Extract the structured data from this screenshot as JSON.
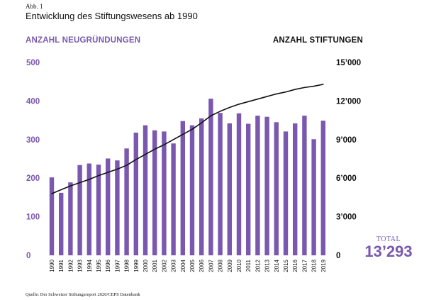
{
  "figure_label": "Abb. 1",
  "title": "Entwicklung des Stiftungswesens ab 1990",
  "left_axis_title": "ANZAHL NEUGRÜNDUNGEN",
  "right_axis_title": "ANZAHL STIFTUNGEN",
  "total": {
    "label": "TOTAL",
    "value": "13’293"
  },
  "source": "Quelle: Der Schweizer Stiftungsreport 2020/CEPS Datenbank",
  "colors": {
    "bars": "#7a58b0",
    "line": "#111111",
    "left_axis_text": "#7a58b0",
    "right_axis_text": "#111111"
  },
  "chart_data": {
    "type": "bar",
    "categories": [
      "1990",
      "1991",
      "1992",
      "1993",
      "1994",
      "1995",
      "1996",
      "1997",
      "1998",
      "1999",
      "2000",
      "2001",
      "2002",
      "2003",
      "2004",
      "2005",
      "2006",
      "2007",
      "2008",
      "2009",
      "2010",
      "2011",
      "2012",
      "2013",
      "2014",
      "2015",
      "2016",
      "2017",
      "2018",
      "2019"
    ],
    "series": [
      {
        "type": "bar",
        "axis": "left",
        "values": [
          202,
          162,
          189,
          234,
          238,
          235,
          251,
          246,
          277,
          318,
          337,
          324,
          321,
          290,
          348,
          337,
          355,
          406,
          369,
          342,
          368,
          341,
          362,
          359,
          345,
          321,
          342,
          362,
          301,
          349
        ]
      },
      {
        "type": "line",
        "axis": "right",
        "values": [
          4800,
          5100,
          5400,
          5650,
          5900,
          6200,
          6450,
          6700,
          7000,
          7450,
          7850,
          8250,
          8600,
          9000,
          9400,
          9800,
          10300,
          10850,
          11200,
          11500,
          11750,
          11950,
          12150,
          12350,
          12550,
          12700,
          12900,
          13050,
          13150,
          13293
        ]
      }
    ],
    "left_axis": {
      "ylim": [
        0,
        500
      ],
      "ticks": [
        "0",
        "100",
        "200",
        "300",
        "400",
        "500"
      ]
    },
    "right_axis": {
      "ylim": [
        0,
        15000
      ],
      "ticks": [
        "0",
        "3’000",
        "6’000",
        "9’000",
        "12’000",
        "15’000"
      ]
    },
    "grid": false
  }
}
